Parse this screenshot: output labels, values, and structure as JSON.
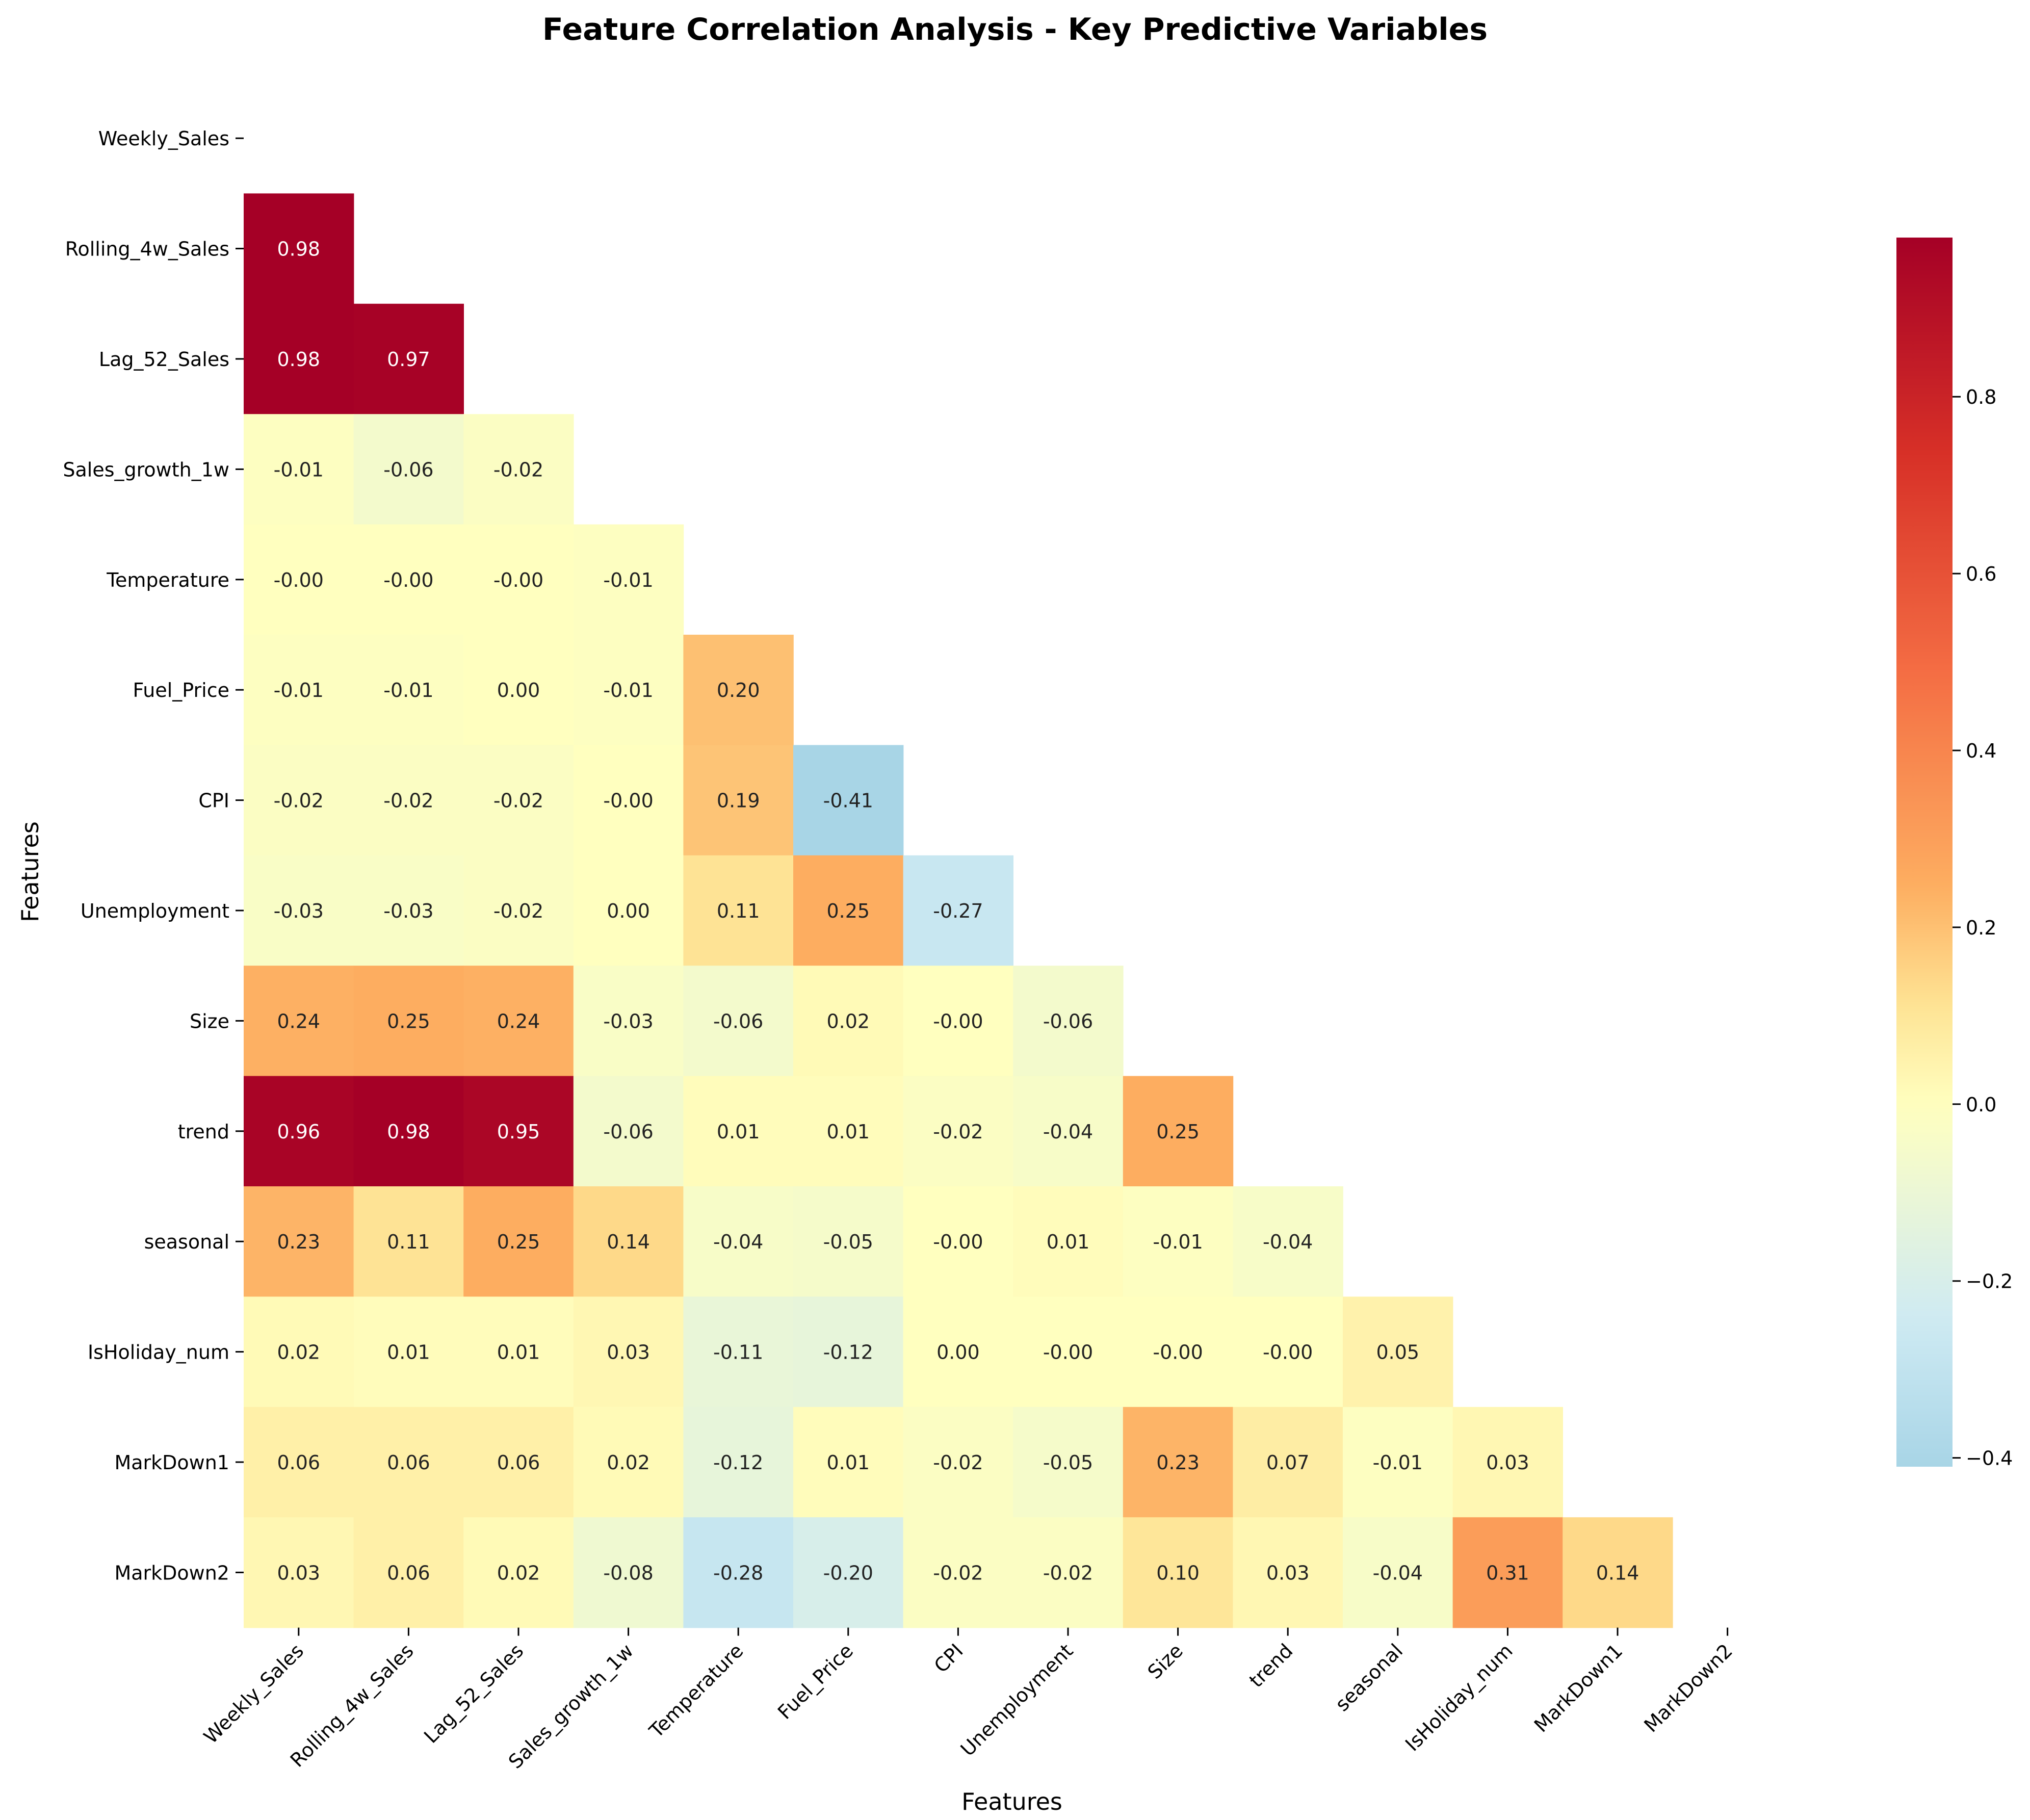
{
  "chart_data": {
    "type": "heatmap",
    "title": "Feature Correlation Analysis - Key Predictive Variables",
    "xlabel": "Features",
    "ylabel": "Features",
    "labels": [
      "Weekly_Sales",
      "Rolling_4w_Sales",
      "Lag_52_Sales",
      "Sales_growth_1w",
      "Temperature",
      "Fuel_Price",
      "CPI",
      "Unemployment",
      "Size",
      "trend",
      "seasonal",
      "IsHoliday_num",
      "MarkDown1",
      "MarkDown2"
    ],
    "lower_triangle": [
      [],
      [
        "0.98"
      ],
      [
        "0.98",
        "0.97"
      ],
      [
        "-0.01",
        "-0.06",
        "-0.02"
      ],
      [
        "-0.00",
        "-0.00",
        "-0.00",
        "-0.01"
      ],
      [
        "-0.01",
        "-0.01",
        "0.00",
        "-0.01",
        "0.20"
      ],
      [
        "-0.02",
        "-0.02",
        "-0.02",
        "-0.00",
        "0.19",
        "-0.41"
      ],
      [
        "-0.03",
        "-0.03",
        "-0.02",
        "0.00",
        "0.11",
        "0.25",
        "-0.27"
      ],
      [
        "0.24",
        "0.25",
        "0.24",
        "-0.03",
        "-0.06",
        "0.02",
        "-0.00",
        "-0.06"
      ],
      [
        "0.96",
        "0.98",
        "0.95",
        "-0.06",
        "0.01",
        "0.01",
        "-0.02",
        "-0.04",
        "0.25"
      ],
      [
        "0.23",
        "0.11",
        "0.25",
        "0.14",
        "-0.04",
        "-0.05",
        "-0.00",
        "0.01",
        "-0.01",
        "-0.04"
      ],
      [
        "0.02",
        "0.01",
        "0.01",
        "0.03",
        "-0.11",
        "-0.12",
        "0.00",
        "-0.00",
        "-0.00",
        "-0.00",
        "0.05"
      ],
      [
        "0.06",
        "0.06",
        "0.06",
        "0.02",
        "-0.12",
        "0.01",
        "-0.02",
        "-0.05",
        "0.23",
        "0.07",
        "-0.01",
        "0.03"
      ],
      [
        "0.03",
        "0.06",
        "0.02",
        "-0.08",
        "-0.28",
        "-0.20",
        "-0.02",
        "-0.02",
        "0.10",
        "0.03",
        "-0.04",
        "0.31",
        "0.14"
      ]
    ],
    "mask": "upper triangle including diagonal",
    "colormap": "RdYlBu_r",
    "center": 0,
    "vmin": -0.41,
    "vmax": 0.98,
    "colorbar_ticks": [
      "−0.4",
      "−0.2",
      "0.0",
      "0.2",
      "0.4",
      "0.6",
      "0.8"
    ],
    "colorbar_tick_values": [
      -0.4,
      -0.2,
      0.0,
      0.2,
      0.4,
      0.6,
      0.8
    ],
    "colors": {
      "high": "#a50026",
      "mid": "#ffffbf",
      "low": "#a8d5e6",
      "text_dark": "#222222",
      "text_light": "#ffffff"
    }
  }
}
